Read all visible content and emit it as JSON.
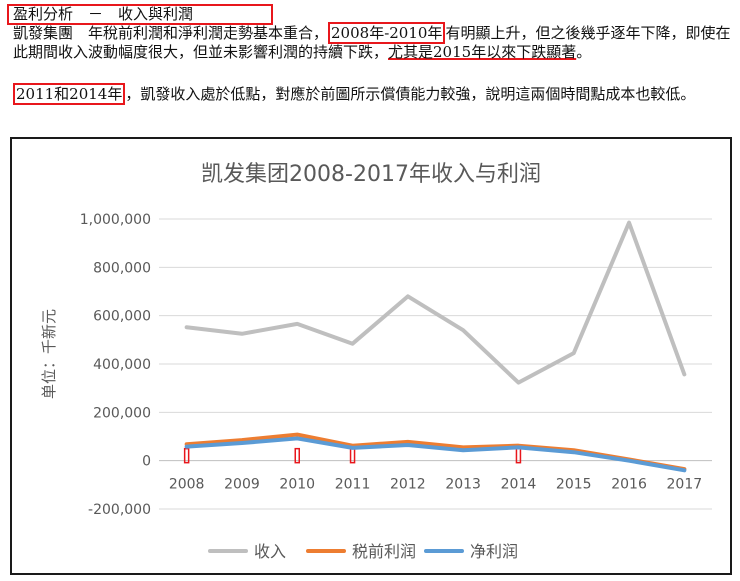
{
  "header": {
    "heading": "盈利分析　－　收入與利潤",
    "para1_a": "凱發集團　年稅前利潤和淨利潤走勢基本重合，",
    "para1_hl": "2008年-2010年",
    "para1_b": "有明顯上升，但之後幾乎逐年下降，即使在此期間收入波動幅度很大，但並未影響利潤的持續下跌，",
    "para1_c": "尤其是2015年以來下跌顯著",
    "para1_d": "。",
    "para2_hl": "2011和2014年",
    "para2_b": "，凱發收入處於低點，對應於前圖所示償債能力較強，說明這兩個時間點成本也較低。"
  },
  "chart_data": {
    "type": "line",
    "title": "凯发集团2008-2017年收入与利润",
    "ylabel": "单位：千新元",
    "xlabel": "",
    "categories": [
      "2008",
      "2009",
      "2010",
      "2011",
      "2012",
      "2013",
      "2014",
      "2015",
      "2016",
      "2017"
    ],
    "ylim": [
      -200000,
      1000000
    ],
    "yticks": [
      -200000,
      0,
      200000,
      400000,
      600000,
      800000,
      1000000
    ],
    "ytick_labels": [
      "-200,000",
      "0",
      "200,000",
      "400,000",
      "600,000",
      "800,000",
      "1,000,000"
    ],
    "grid": true,
    "legend": "bottom",
    "series": [
      {
        "name": "收入",
        "color": "#bfbfbf",
        "values": [
          552000,
          525000,
          566000,
          484000,
          680000,
          540000,
          323000,
          445000,
          985000,
          357000
        ]
      },
      {
        "name": "税前利润",
        "color": "#ed7d31",
        "values": [
          68000,
          85000,
          108000,
          62000,
          78000,
          55000,
          62000,
          43000,
          5000,
          -35000
        ]
      },
      {
        "name": "净利润",
        "color": "#5b9bd5",
        "values": [
          58000,
          73000,
          92000,
          53000,
          65000,
          43000,
          55000,
          35000,
          0,
          -40000
        ]
      }
    ],
    "markers": [
      "2008",
      "2010",
      "2011",
      "2014"
    ],
    "marker_color": "#e8171c"
  }
}
